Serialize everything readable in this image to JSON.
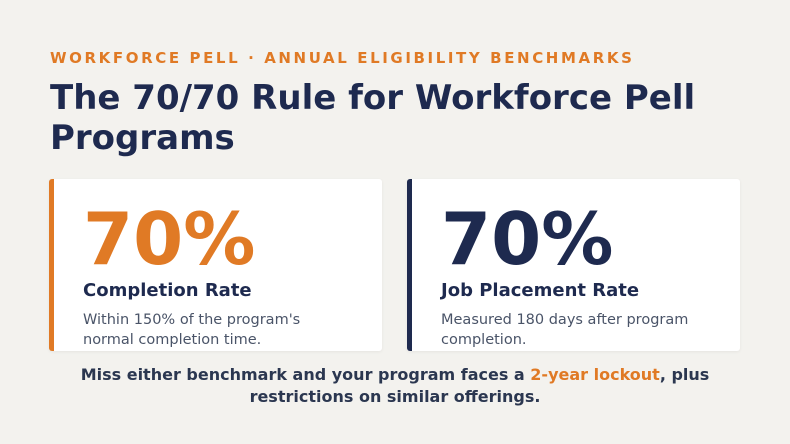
{
  "colors": {
    "accent": "#e07a25",
    "navy": "#1e2a4f",
    "background": "#f3f2ee"
  },
  "header": {
    "eyebrow": "WORKFORCE PELL · ANNUAL ELIGIBILITY BENCHMARKS",
    "title": "The 70/70 Rule for Workforce Pell Programs"
  },
  "cards": [
    {
      "value": "70%",
      "label": "Completion Rate",
      "description": "Within 150% of the program's normal completion time."
    },
    {
      "value": "70%",
      "label": "Job Placement Rate",
      "description": "Measured 180 days after program completion."
    }
  ],
  "footer": {
    "before": "Miss either benchmark and your program faces a ",
    "highlight": "2-year lockout",
    "after": ", plus restrictions on similar offerings."
  }
}
